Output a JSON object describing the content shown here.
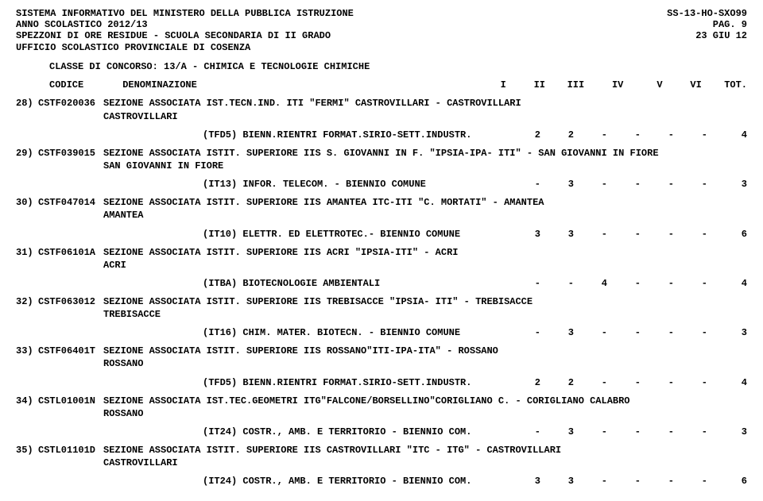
{
  "header": {
    "line1_left": "SISTEMA INFORMATIVO DEL MINISTERO DELLA PUBBLICA ISTRUZIONE",
    "line1_right": "SS-13-HO-SXO99",
    "line2_left": "ANNO SCOLASTICO 2012/13",
    "line2_right": "PAG.    9",
    "line3_left": "SPEZZONI DI ORE RESIDUE - SCUOLA SECONDARIA DI II GRADO",
    "line3_right": "23 GIU 12",
    "line4_left": "UFFICIO SCOLASTICO PROVINCIALE DI COSENZA"
  },
  "class_line": "CLASSE DI CONCORSO: 13/A  - CHIMICA E TECNOLOGIE CHIMICHE",
  "col_headers": {
    "codice": "CODICE",
    "denom": "DENOMINAZIONE",
    "i": "I",
    "ii": "II",
    "iii": "III",
    "iv": "IV",
    "v": "V",
    "vi": "VI",
    "tot": "TOT."
  },
  "rows": [
    {
      "n": "28)",
      "code": "CSTF020036",
      "desc1": "SEZIONE ASSOCIATA IST.TECN.IND. ITI \"FERMI\" CASTROVILLARI - CASTROVILLARI",
      "desc2": "CASTROVILLARI",
      "course": "(TFD5) BIENN.RIENTRI FORMAT.SIRIO-SETT.INDUSTR.",
      "i": "2",
      "ii": "2",
      "iii": "-",
      "iv": "-",
      "v": "-",
      "vi": "-",
      "tot": "4"
    },
    {
      "n": "29)",
      "code": "CSTF039015",
      "desc1": "SEZIONE ASSOCIATA ISTIT. SUPERIORE IIS S. GIOVANNI IN F. \"IPSIA-IPA- ITI\" - SAN GIOVANNI IN FIORE",
      "desc2": "SAN GIOVANNI IN FIORE",
      "course": "(IT13) INFOR. TELECOM. - BIENNIO COMUNE",
      "i": "-",
      "ii": "3",
      "iii": "-",
      "iv": "-",
      "v": "-",
      "vi": "-",
      "tot": "3"
    },
    {
      "n": "30)",
      "code": "CSTF047014",
      "desc1": "SEZIONE ASSOCIATA ISTIT. SUPERIORE IIS AMANTEA ITC-ITI \"C. MORTATI\" - AMANTEA",
      "desc2": "AMANTEA",
      "course": "(IT10) ELETTR. ED ELETTROTEC.- BIENNIO COMUNE",
      "i": "3",
      "ii": "3",
      "iii": "-",
      "iv": "-",
      "v": "-",
      "vi": "-",
      "tot": "6"
    },
    {
      "n": "31)",
      "code": "CSTF06101A",
      "desc1": "SEZIONE ASSOCIATA ISTIT. SUPERIORE IIS ACRI \"IPSIA-ITI\" - ACRI",
      "desc2": "ACRI",
      "course": "(ITBA) BIOTECNOLOGIE AMBIENTALI",
      "i": "-",
      "ii": "-",
      "iii": "4",
      "iv": "-",
      "v": "-",
      "vi": "-",
      "tot": "4"
    },
    {
      "n": "32)",
      "code": "CSTF063012",
      "desc1": "SEZIONE ASSOCIATA ISTIT. SUPERIORE IIS TREBISACCE \"IPSIA- ITI\" - TREBISACCE",
      "desc2": "TREBISACCE",
      "course": "(IT16) CHIM. MATER. BIOTECN. - BIENNIO COMUNE",
      "i": "-",
      "ii": "3",
      "iii": "-",
      "iv": "-",
      "v": "-",
      "vi": "-",
      "tot": "3"
    },
    {
      "n": "33)",
      "code": "CSTF06401T",
      "desc1": "SEZIONE ASSOCIATA ISTIT. SUPERIORE IIS ROSSANO\"ITI-IPA-ITA\" - ROSSANO",
      "desc2": "ROSSANO",
      "course": "(TFD5) BIENN.RIENTRI FORMAT.SIRIO-SETT.INDUSTR.",
      "i": "2",
      "ii": "2",
      "iii": "-",
      "iv": "-",
      "v": "-",
      "vi": "-",
      "tot": "4"
    },
    {
      "n": "34)",
      "code": "CSTL01001N",
      "desc1": "SEZIONE ASSOCIATA IST.TEC.GEOMETRI ITG\"FALCONE/BORSELLINO\"CORIGLIANO C. - CORIGLIANO CALABRO",
      "desc2": "ROSSANO",
      "course": "(IT24) COSTR., AMB. E TERRITORIO - BIENNIO COM.",
      "i": "-",
      "ii": "3",
      "iii": "-",
      "iv": "-",
      "v": "-",
      "vi": "-",
      "tot": "3"
    },
    {
      "n": "35)",
      "code": "CSTL01101D",
      "desc1": "SEZIONE ASSOCIATA ISTIT. SUPERIORE IIS CASTROVILLARI \"ITC - ITG\" - CASTROVILLARI",
      "desc2": "CASTROVILLARI",
      "course": "(IT24) COSTR., AMB. E TERRITORIO - BIENNIO COM.",
      "i": "3",
      "ii": "3",
      "iii": "-",
      "iv": "-",
      "v": "-",
      "vi": "-",
      "tot": "6"
    }
  ]
}
